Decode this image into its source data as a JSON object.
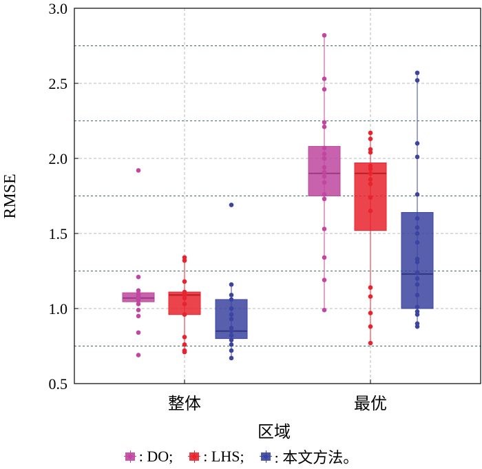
{
  "chart_data": {
    "type": "box",
    "xlabel": "区域",
    "ylabel": "RMSE",
    "ylim": [
      0.5,
      3.0
    ],
    "yticks": [
      "0.5",
      "1.0",
      "1.5",
      "2.0",
      "2.5",
      "3.0"
    ],
    "grid_minor_y": [
      0.75,
      1.25,
      1.75,
      2.25,
      2.75
    ],
    "categories": [
      "整体",
      "最优"
    ],
    "series": [
      {
        "legend": ": DO;",
        "color": "#c0479f",
        "boxes": [
          {
            "q1": 1.045,
            "median": 1.07,
            "q3": 1.105,
            "whisker_low": 1.045,
            "whisker_high": 1.105,
            "points": [
              0.69,
              0.84,
              0.95,
              0.99,
              1.03,
              1.05,
              1.06,
              1.07,
              1.08,
              1.09,
              1.1,
              1.12,
              1.21,
              1.92
            ]
          },
          {
            "q1": 1.75,
            "median": 1.9,
            "q3": 2.08,
            "whisker_low": 0.99,
            "whisker_high": 2.82,
            "points": [
              0.99,
              1.19,
              1.34,
              1.53,
              1.73,
              1.76,
              1.84,
              1.88,
              1.91,
              1.94,
              2.0,
              2.03,
              2.07,
              2.21,
              2.24,
              2.46,
              2.53,
              2.82
            ]
          }
        ]
      },
      {
        "legend": ": LHS;",
        "color": "#e8232d",
        "boxes": [
          {
            "q1": 0.96,
            "median": 1.09,
            "q3": 1.11,
            "whisker_low": 0.71,
            "whisker_high": 1.34,
            "points": [
              0.71,
              0.72,
              0.76,
              0.81,
              0.96,
              1.03,
              1.07,
              1.09,
              1.1,
              1.11,
              1.18,
              1.32,
              1.34
            ]
          },
          {
            "q1": 1.52,
            "median": 1.9,
            "q3": 1.97,
            "whisker_low": 0.77,
            "whisker_high": 2.17,
            "points": [
              0.77,
              0.88,
              0.97,
              1.08,
              1.14,
              1.65,
              1.74,
              1.83,
              1.86,
              1.9,
              1.93,
              1.95,
              2.04,
              2.06,
              2.13,
              2.17
            ]
          }
        ]
      },
      {
        "legend": ": 本文方法。",
        "color": "#3b44a0",
        "boxes": [
          {
            "q1": 0.8,
            "median": 0.85,
            "q3": 1.06,
            "whisker_low": 0.67,
            "whisker_high": 1.16,
            "points": [
              0.67,
              0.72,
              0.76,
              0.79,
              0.82,
              0.85,
              0.87,
              0.93,
              0.96,
              1.0,
              1.06,
              1.09,
              1.16,
              1.69
            ]
          },
          {
            "q1": 1.0,
            "median": 1.23,
            "q3": 1.64,
            "whisker_low": 0.88,
            "whisker_high": 2.57,
            "points": [
              0.88,
              0.9,
              0.96,
              0.98,
              1.01,
              1.09,
              1.16,
              1.2,
              1.24,
              1.31,
              1.33,
              1.44,
              1.5,
              1.54,
              1.6,
              1.76,
              2.01,
              2.1,
              2.52,
              2.57
            ]
          }
        ]
      }
    ]
  }
}
